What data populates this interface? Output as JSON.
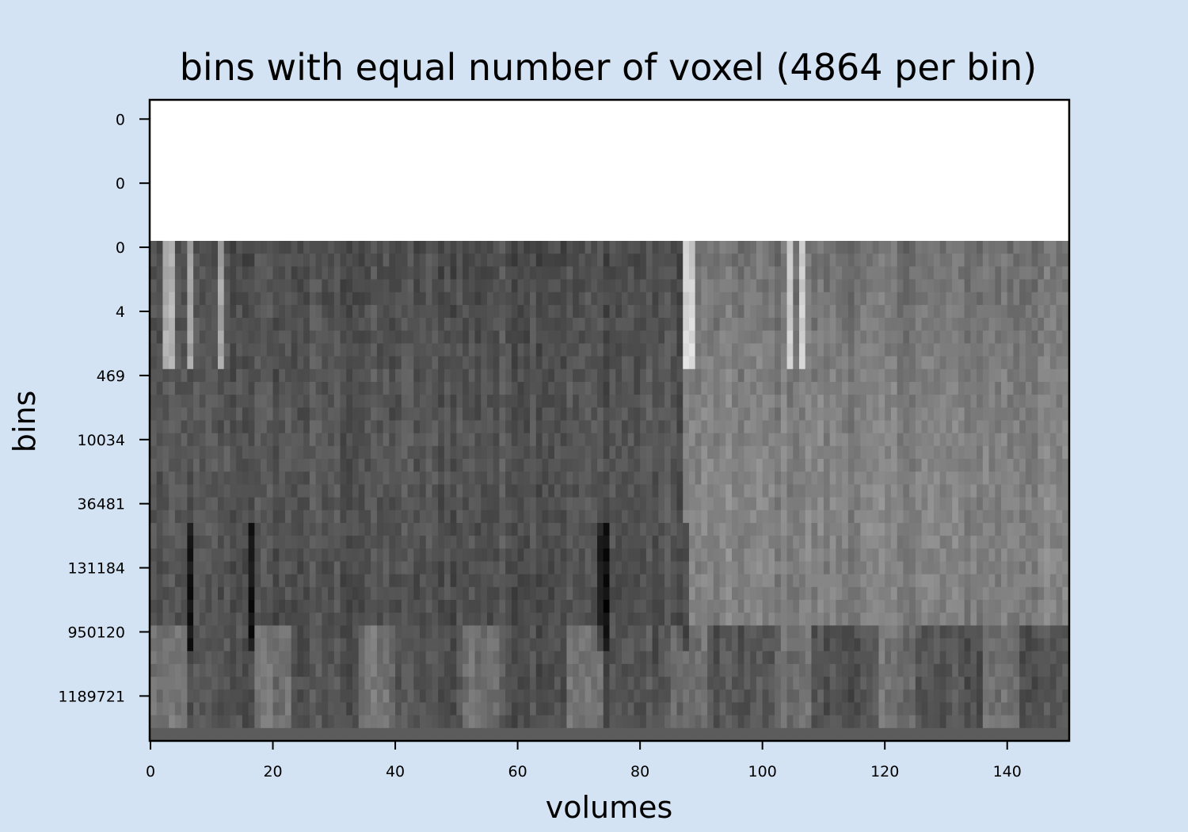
{
  "chart_data": {
    "type": "heatmap",
    "title": "bins with equal number of voxel (4864 per bin)",
    "xlabel": "volumes",
    "ylabel": "bins",
    "colormap": "grayscale",
    "xlim": [
      0,
      150
    ],
    "x_ticks": [
      "0",
      "20",
      "40",
      "60",
      "80",
      "100",
      "120",
      "140"
    ],
    "y_ticks": [
      "0",
      "0",
      "0",
      "4",
      "469",
      "10034",
      "36481",
      "131184",
      "950120",
      "1189721"
    ],
    "n_volumes": 150,
    "n_bins": 50,
    "empty_bins": 11,
    "bright_volumes": [
      2,
      3,
      6,
      11,
      87,
      88,
      104,
      106
    ],
    "dark_volumes": [
      6,
      16,
      73,
      74,
      87
    ],
    "bright_segment_start": 87,
    "colors": {
      "background": "#d3e3f3",
      "axes_face": "#ffffff",
      "axes_edge": "#000000"
    }
  }
}
